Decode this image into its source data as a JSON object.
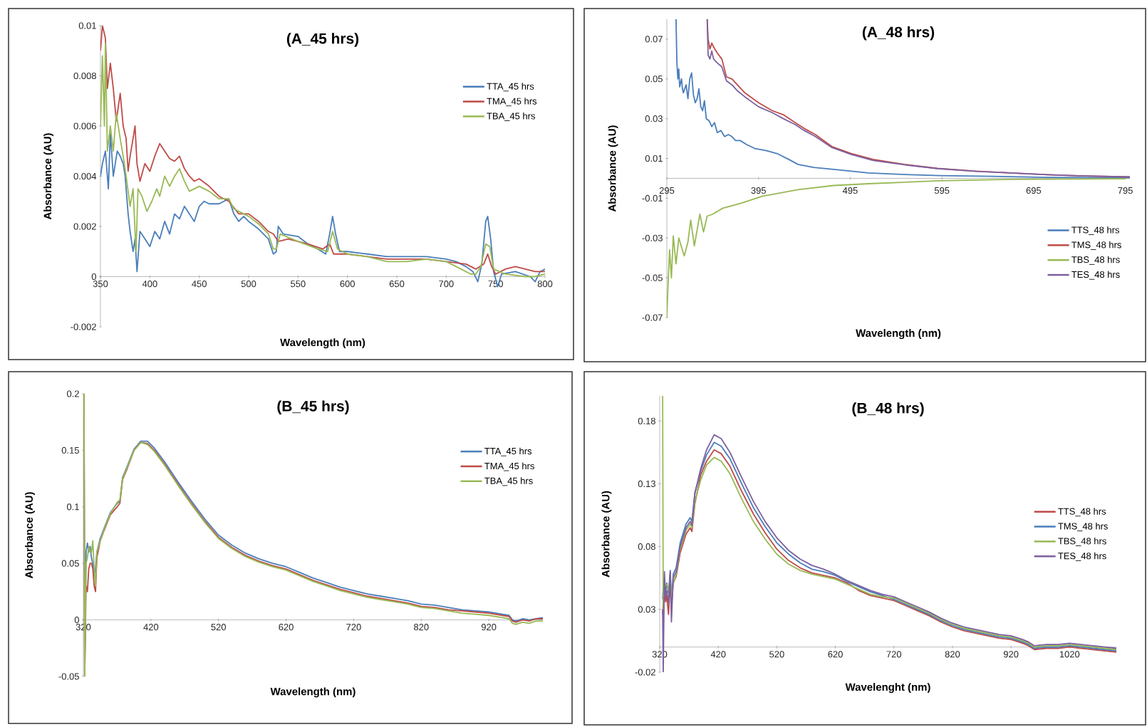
{
  "chart_data": [
    {
      "type": "line",
      "title": "(A_45 hrs)",
      "xlabel": "Wavelength (nm)",
      "ylabel": "Absorbance (AU)",
      "xlim": [
        350,
        800
      ],
      "ylim": [
        -0.002,
        0.01
      ],
      "xticks": [
        350,
        400,
        450,
        500,
        550,
        600,
        650,
        700,
        750,
        800
      ],
      "yticks": [
        -0.002,
        0,
        0.002,
        0.004,
        0.006,
        0.008,
        0.01
      ],
      "legend": "top right",
      "series": [
        {
          "name": "TTA_45 hrs",
          "color": "#4a7ebb",
          "x": [
            350,
            352,
            355,
            358,
            360,
            363,
            367,
            370,
            373,
            375,
            378,
            380,
            383,
            385,
            387,
            390,
            395,
            400,
            405,
            410,
            415,
            420,
            425,
            430,
            435,
            440,
            445,
            450,
            455,
            460,
            470,
            480,
            485,
            490,
            495,
            500,
            510,
            520,
            525,
            528,
            530,
            535,
            550,
            560,
            570,
            578,
            582,
            585,
            588,
            592,
            600,
            620,
            640,
            660,
            680,
            700,
            710,
            720,
            727,
            732,
            736,
            740,
            742,
            745,
            748,
            752,
            756,
            770,
            785,
            790,
            795,
            800
          ],
          "values": [
            0.004,
            0.0045,
            0.005,
            0.0035,
            0.0057,
            0.004,
            0.005,
            0.0048,
            0.0045,
            0.004,
            0.0025,
            0.0018,
            0.001,
            0.0015,
            0.0002,
            0.0018,
            0.0015,
            0.0012,
            0.0018,
            0.0015,
            0.0022,
            0.0017,
            0.0025,
            0.0023,
            0.0028,
            0.0025,
            0.0022,
            0.0028,
            0.003,
            0.0029,
            0.0029,
            0.0031,
            0.0025,
            0.0022,
            0.0024,
            0.0022,
            0.0019,
            0.0015,
            0.0009,
            0.001,
            0.002,
            0.0017,
            0.0016,
            0.0013,
            0.0011,
            0.0009,
            0.0017,
            0.0024,
            0.0017,
            0.001,
            0.001,
            0.0009,
            0.0008,
            0.0008,
            0.0008,
            0.0007,
            0.0006,
            0.0004,
            0.0002,
            -0.0002,
            0.0005,
            0.0022,
            0.0024,
            0.0015,
            0.0002,
            -0.0004,
            0.0001,
            0.0002,
            0,
            -0.0002,
            0.0002,
            0.0003
          ]
        },
        {
          "name": "TMA_45 hrs",
          "color": "#be4b48",
          "x": [
            350,
            352,
            355,
            357,
            360,
            363,
            366,
            370,
            373,
            376,
            378,
            380,
            383,
            385,
            387,
            390,
            395,
            400,
            405,
            410,
            415,
            420,
            425,
            430,
            435,
            440,
            445,
            450,
            460,
            470,
            480,
            490,
            500,
            510,
            520,
            525,
            530,
            540,
            560,
            575,
            582,
            586,
            600,
            620,
            640,
            660,
            680,
            700,
            720,
            730,
            738,
            742,
            746,
            750,
            760,
            770,
            780,
            790,
            800
          ],
          "values": [
            0.009,
            0.01,
            0.0095,
            0.0075,
            0.0085,
            0.0075,
            0.0062,
            0.0073,
            0.006,
            0.0055,
            0.0042,
            0.0048,
            0.0055,
            0.006,
            0.0045,
            0.0038,
            0.0045,
            0.0042,
            0.0048,
            0.0053,
            0.005,
            0.0047,
            0.0046,
            0.0048,
            0.0043,
            0.004,
            0.0038,
            0.0039,
            0.0036,
            0.0032,
            0.003,
            0.0025,
            0.0025,
            0.0022,
            0.0018,
            0.0017,
            0.0014,
            0.0015,
            0.0013,
            0.0011,
            0.0013,
            0.0009,
            0.0009,
            0.0008,
            0.0007,
            0.0007,
            0.0007,
            0.0006,
            0.0005,
            0.0003,
            0.0005,
            0.0009,
            0.0004,
            0.0001,
            0.0003,
            0.0004,
            0.0003,
            0.0002,
            0.0002
          ]
        },
        {
          "name": "TBA_45 hrs",
          "color": "#98b954",
          "x": [
            350,
            352,
            354,
            355,
            357,
            360,
            363,
            366,
            370,
            373,
            376,
            380,
            383,
            386,
            388,
            392,
            397,
            402,
            407,
            410,
            415,
            420,
            425,
            430,
            435,
            440,
            450,
            460,
            470,
            480,
            485,
            490,
            500,
            510,
            520,
            525,
            528,
            532,
            550,
            570,
            580,
            585,
            590,
            600,
            620,
            640,
            660,
            680,
            700,
            715,
            725,
            730,
            735,
            740,
            744,
            748,
            760,
            780,
            790,
            800
          ],
          "values": [
            0.006,
            0.0088,
            0.006,
            0.0093,
            0.005,
            0.006,
            0.005,
            0.0065,
            0.0055,
            0.0048,
            0.004,
            0.0028,
            0.0035,
            0.001,
            0.0035,
            0.0032,
            0.0026,
            0.003,
            0.0035,
            0.0032,
            0.004,
            0.0036,
            0.004,
            0.0043,
            0.0038,
            0.0034,
            0.0036,
            0.0034,
            0.0031,
            0.0031,
            0.0027,
            0.0026,
            0.0024,
            0.0021,
            0.0017,
            0.0011,
            0.0011,
            0.0017,
            0.0014,
            0.0011,
            0.001,
            0.0018,
            0.0011,
            0.0009,
            0.0008,
            0.0006,
            0.0006,
            0.0007,
            0.0006,
            0.0003,
            0.0001,
            0.0001,
            0.0004,
            0.0013,
            0.0012,
            0.0003,
            0.0001,
            0,
            0,
            0.0001
          ]
        }
      ]
    },
    {
      "type": "line",
      "title": "(A_48 hrs)",
      "xlabel": "Wavelength (nm)",
      "ylabel": "Absorbance (AU)",
      "xlim": [
        295,
        800
      ],
      "ylim": [
        -0.07,
        0.08
      ],
      "xticks": [
        295,
        395,
        495,
        595,
        695,
        795
      ],
      "yticks": [
        -0.07,
        -0.05,
        -0.03,
        -0.01,
        0.01,
        0.03,
        0.05,
        0.07
      ],
      "legend": "bottom right",
      "series": [
        {
          "name": "TTS_48 hrs",
          "color": "#4a7ebb",
          "x": [
            305,
            306,
            307,
            308,
            309,
            311,
            312,
            313,
            316,
            318,
            320,
            322,
            324,
            326,
            328,
            330,
            332,
            334,
            336,
            338,
            341,
            344,
            347,
            350,
            354,
            358,
            362,
            366,
            370,
            375,
            382,
            391,
            403,
            415,
            428,
            438,
            455,
            477,
            515,
            550,
            593,
            650,
            710,
            760,
            800
          ],
          "values": [
            0.08,
            0.058,
            0.05,
            0.055,
            0.046,
            0.05,
            0.045,
            0.043,
            0.047,
            0.04,
            0.05,
            0.053,
            0.042,
            0.038,
            0.04,
            0.045,
            0.036,
            0.034,
            0.039,
            0.03,
            0.029,
            0.026,
            0.028,
            0.023,
            0.024,
            0.021,
            0.022,
            0.021,
            0.019,
            0.019,
            0.017,
            0.015,
            0.014,
            0.0125,
            0.0095,
            0.007,
            0.0055,
            0.0045,
            0.0027,
            0.002,
            0.0014,
            0.001,
            0.0005,
            0.0004,
            0.0003
          ]
        },
        {
          "name": "TMS_48 hrs",
          "color": "#be4b48",
          "x": [
            339,
            340,
            342,
            344,
            346,
            350,
            355,
            360,
            366,
            372,
            380,
            395,
            410,
            422,
            435,
            445,
            457,
            475,
            496,
            520,
            554,
            590,
            632,
            670,
            710,
            750,
            800
          ],
          "values": [
            0.08,
            0.07,
            0.065,
            0.068,
            0.066,
            0.063,
            0.06,
            0.051,
            0.05,
            0.047,
            0.043,
            0.038,
            0.034,
            0.032,
            0.028,
            0.025,
            0.022,
            0.016,
            0.0125,
            0.0095,
            0.007,
            0.005,
            0.0036,
            0.0027,
            0.0018,
            0.0012,
            0.0007
          ]
        },
        {
          "name": "TBS_48 hrs",
          "color": "#98b954",
          "x": [
            295,
            296,
            298,
            300,
            302,
            305,
            308,
            314,
            318,
            321,
            325,
            331,
            335,
            339,
            345,
            356,
            376,
            399,
            438,
            477,
            515,
            593,
            671,
            795
          ],
          "values": [
            -0.07,
            -0.057,
            -0.036,
            -0.05,
            -0.029,
            -0.043,
            -0.03,
            -0.039,
            -0.032,
            -0.021,
            -0.034,
            -0.018,
            -0.027,
            -0.019,
            -0.018,
            -0.015,
            -0.0125,
            -0.009,
            -0.0057,
            -0.0036,
            -0.0027,
            -0.0012,
            -0.0005,
            -0.0002
          ]
        },
        {
          "name": "TES_48 hrs",
          "color": "#7d60a0",
          "x": [
            339,
            340,
            342,
            344,
            346,
            350,
            355,
            360,
            366,
            372,
            380,
            395,
            410,
            422,
            435,
            445,
            457,
            475,
            496,
            520,
            554,
            590,
            632,
            670,
            710,
            750,
            800
          ],
          "values": [
            0.08,
            0.062,
            0.06,
            0.064,
            0.06,
            0.058,
            0.056,
            0.049,
            0.047,
            0.044,
            0.041,
            0.036,
            0.033,
            0.03,
            0.027,
            0.024,
            0.021,
            0.0155,
            0.012,
            0.009,
            0.0068,
            0.0049,
            0.0035,
            0.0027,
            0.0018,
            0.0012,
            0.0007
          ]
        }
      ]
    },
    {
      "type": "line",
      "title": "(B_45 hrs)",
      "xlabel": "Wavelength (nm)",
      "ylabel": "Absorbance (AU)",
      "xlim": [
        320,
        1000
      ],
      "ylim": [
        -0.05,
        0.2
      ],
      "xticks": [
        320,
        420,
        520,
        620,
        720,
        820,
        920
      ],
      "yticks": [
        -0.05,
        0,
        0.05,
        0.1,
        0.15,
        0.2
      ],
      "legend": "top right",
      "series": [
        {
          "name": "TTA_45 hrs",
          "color": "#4a7ebb",
          "x": [
            321,
            322,
            324,
            326,
            328,
            330,
            332,
            334,
            336,
            338,
            340,
            345,
            350,
            360,
            370,
            374,
            378,
            385,
            395,
            405,
            415,
            425,
            440,
            460,
            480,
            500,
            520,
            540,
            560,
            580,
            600,
            620,
            640,
            660,
            680,
            700,
            720,
            740,
            760,
            780,
            800,
            820,
            840,
            860,
            880,
            900,
            920,
            940,
            950,
            955,
            960,
            970,
            980,
            990,
            1000
          ],
          "values": [
            0.2,
            -0.05,
            0.06,
            0.068,
            0.06,
            0.065,
            0.055,
            0.05,
            0.04,
            0.045,
            0.06,
            0.072,
            0.08,
            0.095,
            0.103,
            0.105,
            0.126,
            0.136,
            0.151,
            0.158,
            0.158,
            0.152,
            0.14,
            0.122,
            0.105,
            0.089,
            0.075,
            0.066,
            0.059,
            0.054,
            0.05,
            0.047,
            0.042,
            0.037,
            0.033,
            0.029,
            0.026,
            0.023,
            0.021,
            0.019,
            0.017,
            0.014,
            0.013,
            0.011,
            0.009,
            0.008,
            0.007,
            0.005,
            0.004,
            0,
            -0.001,
            0.001,
            0,
            0.001,
            0.002
          ]
        },
        {
          "name": "TMA_45 hrs",
          "color": "#be4b48",
          "x": [
            321,
            322,
            324,
            326,
            328,
            330,
            332,
            334,
            336,
            338,
            340,
            345,
            350,
            360,
            370,
            374,
            378,
            385,
            395,
            405,
            415,
            425,
            440,
            460,
            480,
            500,
            520,
            540,
            560,
            580,
            600,
            620,
            640,
            660,
            680,
            700,
            720,
            740,
            760,
            780,
            800,
            820,
            840,
            860,
            880,
            900,
            920,
            940,
            950,
            955,
            960,
            970,
            980,
            990,
            1000
          ],
          "values": [
            0.2,
            -0.05,
            0.03,
            0.025,
            0.045,
            0.05,
            0.05,
            0.045,
            0.03,
            0.025,
            0.055,
            0.07,
            0.078,
            0.093,
            0.1,
            0.103,
            0.124,
            0.134,
            0.15,
            0.157,
            0.156,
            0.15,
            0.138,
            0.12,
            0.103,
            0.087,
            0.073,
            0.064,
            0.057,
            0.052,
            0.048,
            0.045,
            0.04,
            0.035,
            0.031,
            0.027,
            0.024,
            0.021,
            0.019,
            0.017,
            0.015,
            0.012,
            0.011,
            0.009,
            0.008,
            0.007,
            0.006,
            0.004,
            0.003,
            -0.001,
            -0.002,
            0,
            -0.001,
            0.001,
            0.001
          ]
        },
        {
          "name": "TBA_45 hrs",
          "color": "#98b954",
          "x": [
            321,
            322,
            324,
            326,
            328,
            330,
            332,
            334,
            336,
            338,
            340,
            345,
            350,
            360,
            370,
            374,
            378,
            385,
            395,
            405,
            415,
            425,
            440,
            460,
            480,
            500,
            520,
            540,
            560,
            580,
            600,
            620,
            640,
            660,
            680,
            700,
            720,
            740,
            760,
            780,
            800,
            820,
            840,
            860,
            880,
            900,
            920,
            940,
            950,
            955,
            960,
            970,
            980,
            990,
            1000
          ],
          "values": [
            0.2,
            -0.05,
            0.05,
            0.055,
            0.065,
            0.06,
            0.06,
            0.07,
            0.045,
            0.03,
            0.06,
            0.07,
            0.079,
            0.094,
            0.104,
            0.106,
            0.125,
            0.135,
            0.15,
            0.157,
            0.155,
            0.149,
            0.137,
            0.119,
            0.102,
            0.086,
            0.072,
            0.063,
            0.056,
            0.051,
            0.047,
            0.044,
            0.039,
            0.034,
            0.03,
            0.026,
            0.023,
            0.02,
            0.018,
            0.016,
            0.014,
            0.011,
            0.01,
            0.008,
            0.006,
            0.005,
            0.004,
            0.002,
            0.001,
            -0.003,
            -0.004,
            -0.002,
            -0.003,
            -0.001,
            -0.001
          ]
        }
      ]
    },
    {
      "type": "line",
      "title": "(B_48 hrs)",
      "xlabel": "Wavelenght (nm)",
      "ylabel": "Absorbance (AU)",
      "xlim": [
        320,
        1100
      ],
      "ylim": [
        -0.02,
        0.2
      ],
      "xticks": [
        320,
        420,
        520,
        620,
        720,
        820,
        920,
        1020
      ],
      "yticks": [
        -0.02,
        0.03,
        0.08,
        0.13,
        0.18
      ],
      "legend": "right",
      "series": [
        {
          "name": "TTS_48 hrs",
          "color": "#be4b48",
          "x": [
            325,
            326,
            328,
            330,
            332,
            335,
            338,
            340,
            343,
            348,
            355,
            365,
            372,
            375,
            380,
            390,
            400,
            413,
            425,
            440,
            460,
            480,
            500,
            520,
            540,
            560,
            580,
            600,
            620,
            640,
            660,
            680,
            700,
            720,
            740,
            760,
            780,
            800,
            820,
            840,
            860,
            880,
            900,
            920,
            940,
            950,
            960,
            980,
            1000,
            1020,
            1040,
            1060,
            1080,
            1100
          ],
          "values": [
            0.026,
            0.036,
            0.046,
            0.036,
            0.041,
            0.026,
            0.051,
            0.031,
            0.051,
            0.056,
            0.075,
            0.09,
            0.095,
            0.092,
            0.114,
            0.137,
            0.148,
            0.157,
            0.154,
            0.144,
            0.124,
            0.106,
            0.091,
            0.078,
            0.069,
            0.063,
            0.059,
            0.057,
            0.055,
            0.051,
            0.045,
            0.041,
            0.039,
            0.037,
            0.033,
            0.029,
            0.025,
            0.02,
            0.016,
            0.013,
            0.011,
            0.009,
            0.007,
            0.006,
            0.003,
            0.001,
            -0.002,
            -0.001,
            -0.001,
            0,
            -0.001,
            -0.002,
            -0.003,
            -0.004
          ]
        },
        {
          "name": "TMS_48 hrs",
          "color": "#4a7ebb",
          "x": [
            325,
            326,
            328,
            330,
            332,
            335,
            338,
            340,
            343,
            348,
            355,
            365,
            372,
            375,
            380,
            390,
            400,
            413,
            425,
            440,
            460,
            480,
            500,
            520,
            540,
            560,
            580,
            600,
            620,
            640,
            660,
            680,
            700,
            720,
            740,
            760,
            780,
            800,
            820,
            840,
            860,
            880,
            900,
            920,
            940,
            950,
            960,
            980,
            1000,
            1020,
            1040,
            1060,
            1080,
            1100
          ],
          "values": [
            0.038,
            0.048,
            0.053,
            0.043,
            0.051,
            0.043,
            0.061,
            0.033,
            0.058,
            0.063,
            0.083,
            0.098,
            0.103,
            0.1,
            0.123,
            0.14,
            0.153,
            0.163,
            0.16,
            0.15,
            0.13,
            0.111,
            0.096,
            0.083,
            0.074,
            0.067,
            0.062,
            0.06,
            0.057,
            0.052,
            0.048,
            0.044,
            0.041,
            0.038,
            0.034,
            0.03,
            0.026,
            0.021,
            0.017,
            0.014,
            0.012,
            0.01,
            0.008,
            0.007,
            0.004,
            0.002,
            -0.001,
            0,
            0,
            0.001,
            0,
            -0.001,
            -0.002,
            -0.003
          ]
        },
        {
          "name": "TBS_48 hrs",
          "color": "#98b954",
          "x": [
            325,
            326,
            328,
            330,
            332,
            335,
            338,
            340,
            343,
            348,
            355,
            365,
            372,
            375,
            380,
            390,
            400,
            413,
            425,
            440,
            460,
            480,
            500,
            520,
            540,
            560,
            580,
            600,
            620,
            640,
            660,
            680,
            700,
            720,
            740,
            760,
            780,
            800,
            820,
            840,
            860,
            880,
            900,
            920,
            940,
            950,
            960,
            980,
            1000,
            1020,
            1040,
            1060,
            1080,
            1100
          ],
          "values": [
            0.2,
            0.03,
            0.045,
            0.05,
            0.05,
            0.045,
            0.055,
            0.04,
            0.05,
            0.058,
            0.078,
            0.093,
            0.098,
            0.095,
            0.116,
            0.133,
            0.145,
            0.151,
            0.148,
            0.138,
            0.118,
            0.1,
            0.086,
            0.074,
            0.066,
            0.061,
            0.058,
            0.056,
            0.054,
            0.05,
            0.046,
            0.042,
            0.04,
            0.039,
            0.035,
            0.031,
            0.027,
            0.022,
            0.018,
            0.015,
            0.013,
            0.011,
            0.009,
            0.008,
            0.005,
            0.003,
            0,
            0.001,
            0.001,
            0.002,
            0.001,
            0,
            -0.001,
            -0.002
          ]
        },
        {
          "name": "TES_48 hrs",
          "color": "#7d60a0",
          "x": [
            325,
            326,
            328,
            330,
            332,
            335,
            338,
            340,
            343,
            348,
            355,
            365,
            372,
            375,
            380,
            390,
            400,
            413,
            425,
            440,
            460,
            480,
            500,
            520,
            540,
            560,
            580,
            600,
            620,
            640,
            660,
            680,
            700,
            720,
            740,
            760,
            780,
            800,
            820,
            840,
            860,
            880,
            900,
            920,
            940,
            950,
            960,
            980,
            1000,
            1020,
            1040,
            1060,
            1080,
            1100
          ],
          "values": [
            0.03,
            -0.02,
            0.06,
            0.04,
            0.045,
            0.035,
            0.06,
            0.02,
            0.055,
            0.06,
            0.08,
            0.095,
            0.1,
            0.097,
            0.122,
            0.142,
            0.157,
            0.169,
            0.166,
            0.155,
            0.135,
            0.116,
            0.1,
            0.087,
            0.077,
            0.07,
            0.065,
            0.062,
            0.058,
            0.053,
            0.049,
            0.045,
            0.042,
            0.04,
            0.036,
            0.032,
            0.028,
            0.023,
            0.019,
            0.016,
            0.014,
            0.012,
            0.01,
            0.009,
            0.006,
            0.004,
            0.001,
            0.002,
            0.002,
            0.003,
            0.002,
            0.001,
            0,
            -0.001
          ]
        }
      ]
    }
  ]
}
